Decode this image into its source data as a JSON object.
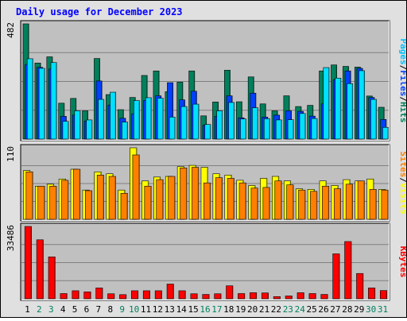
{
  "chart_data": {
    "type": "bar",
    "title": "Daily usage for December 2023",
    "categories": [
      "1",
      "2",
      "3",
      "4",
      "5",
      "6",
      "7",
      "8",
      "9",
      "10",
      "11",
      "12",
      "13",
      "14",
      "15",
      "16",
      "17",
      "18",
      "19",
      "20",
      "21",
      "22",
      "23",
      "24",
      "25",
      "26",
      "27",
      "28",
      "29",
      "30",
      "31"
    ],
    "weekend_days": [
      "2",
      "3",
      "9",
      "10",
      "16",
      "17",
      "23",
      "24",
      "30",
      "31"
    ],
    "colors": {
      "hits": "#00805c",
      "files": "#0040ff",
      "pages": "#00e0ff",
      "visits": "#ffff00",
      "sites": "#ff8000",
      "kbytes": "#ff0000",
      "weekday_label": "#000000",
      "weekend_label": "#00805c",
      "title": "#0000ff",
      "panel": "#c0c0c0"
    },
    "panels": [
      {
        "id": "hits_files_pages",
        "ymax_label": "482",
        "ylim": [
          0,
          482
        ],
        "legend": [
          {
            "label": "Pages",
            "color": "#00c0ff"
          },
          {
            "label": "/",
            "color": "#000000"
          },
          {
            "label": "Files",
            "color": "#0040ff"
          },
          {
            "label": "/",
            "color": "#000000"
          },
          {
            "label": "Hits",
            "color": "#00805c"
          }
        ],
        "series": [
          {
            "name": "Hits",
            "values": [
              482,
              318,
              344,
              150,
              170,
              118,
              337,
              186,
              123,
              174,
              266,
              285,
              198,
              238,
              285,
              97,
              155,
              288,
              156,
              260,
              147,
              118,
              181,
              136,
              141,
              285,
              310,
              304,
              301,
              180,
              133
            ]
          },
          {
            "name": "Files",
            "values": [
              312,
              300,
              293,
              95,
              100,
              75,
              243,
              142,
              87,
              105,
              162,
              181,
              236,
              164,
              200,
              58,
              95,
              181,
              89,
              192,
              92,
              100,
              118,
              116,
              96,
              147,
              248,
              285,
              296,
              174,
              82
            ]
          },
          {
            "name": "Pages",
            "values": [
              336,
              296,
              320,
              74,
              118,
              80,
              166,
              196,
              71,
              161,
              173,
              171,
              92,
              136,
              146,
              61,
              118,
              153,
              84,
              131,
              85,
              80,
              81,
              107,
              86,
              299,
              255,
              232,
              286,
              166,
              49
            ]
          }
        ]
      },
      {
        "id": "visits_sites",
        "ymax_label": "110",
        "ylim": [
          0,
          110
        ],
        "legend": [
          {
            "label": "Sites",
            "color": "#ff8000"
          },
          {
            "label": "/",
            "color": "#000000"
          },
          {
            "label": "Visits",
            "color": "#ffff00"
          }
        ],
        "series": [
          {
            "name": "Visits",
            "values": [
              75,
              51,
              54,
              62,
              77,
              45,
              73,
              70,
              45,
              110,
              59,
              65,
              66,
              81,
              83,
              80,
              70,
              68,
              60,
              52,
              63,
              66,
              59,
              47,
              46,
              59,
              52,
              61,
              59,
              62,
              46
            ]
          },
          {
            "name": "Sites",
            "values": [
              73,
              51,
              51,
              60,
              77,
              44,
              68,
              66,
              40,
              99,
              51,
              61,
              66,
              79,
              80,
              56,
              64,
              63,
              56,
              48,
              49,
              59,
              53,
              45,
              43,
              51,
              47,
              54,
              59,
              46,
              45
            ]
          }
        ]
      },
      {
        "id": "kbytes",
        "ymax_label": "33486",
        "ylim": [
          0,
          33486
        ],
        "legend": [
          {
            "label": "KBytes",
            "color": "#ff0000"
          }
        ],
        "series": [
          {
            "name": "KBytes",
            "values": [
              33486,
              27300,
              19400,
              2400,
              3700,
              3200,
              5000,
              2300,
              1900,
              3700,
              3700,
              3700,
              6800,
              3700,
              2300,
              2000,
              2300,
              6000,
              2400,
              2800,
              2700,
              1000,
              1300,
              2800,
              2400,
              2000,
              20800,
              26500,
              11700,
              5000,
              3800
            ]
          }
        ]
      }
    ]
  }
}
